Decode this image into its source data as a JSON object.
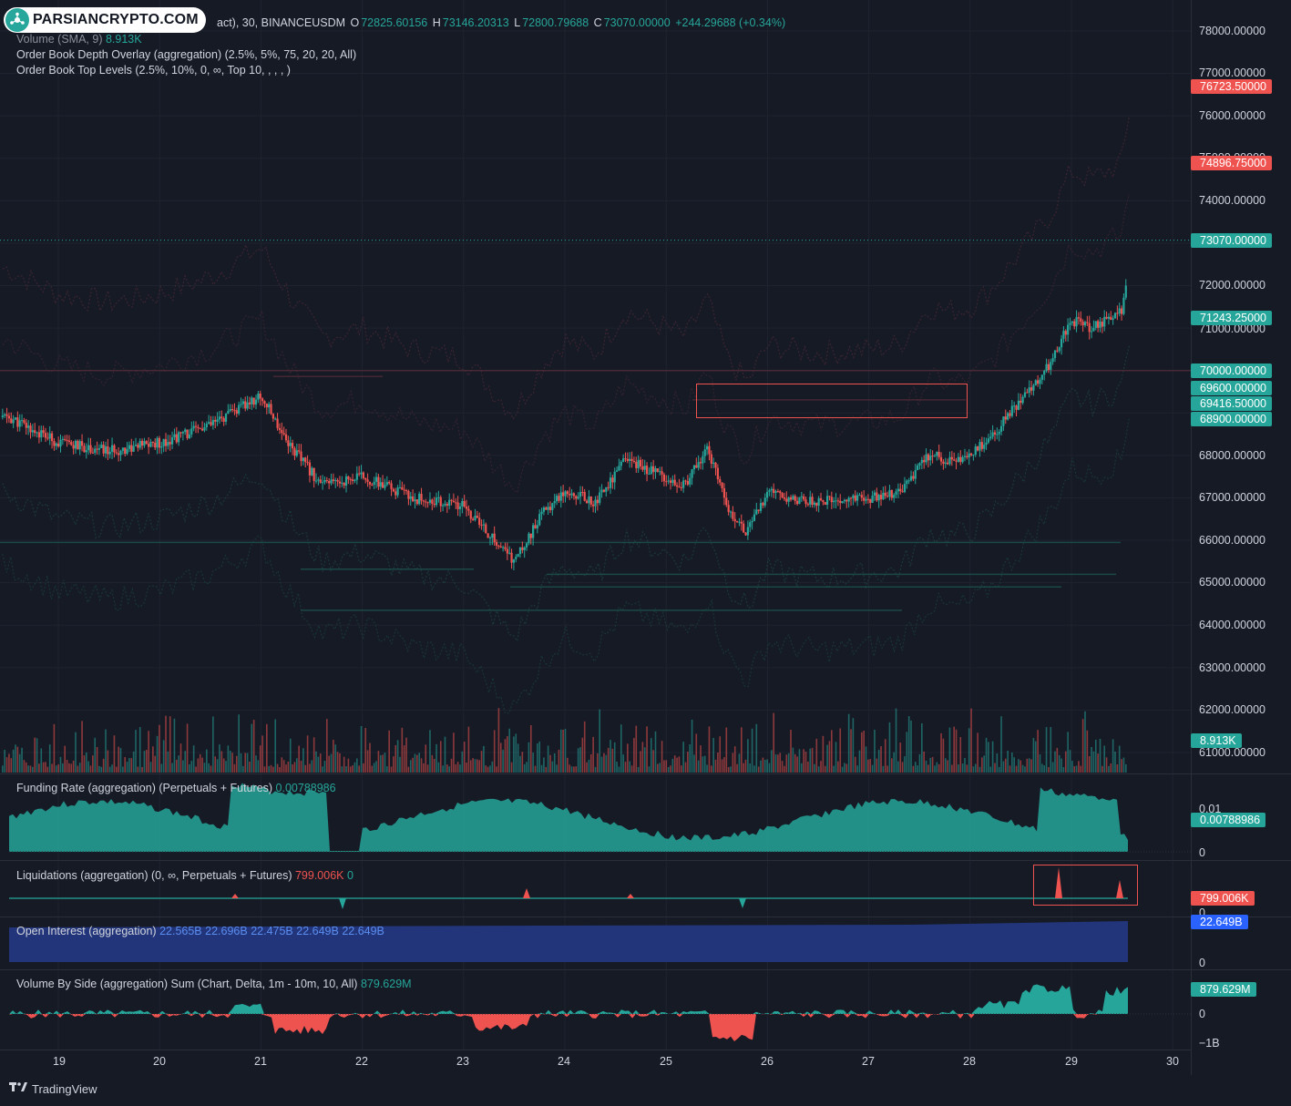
{
  "brand": {
    "name": "PARSIANCRYPTO.COM"
  },
  "main_legend": {
    "symbol_suffix": "act), 30, BINANCEUSDM",
    "open_label": "O",
    "open": "72825.60156",
    "high_label": "H",
    "high": "73146.20313",
    "low_label": "L",
    "low": "72800.79688",
    "close_label": "C",
    "close": "73070.00000",
    "change": "+244.29688 (+0.34%)",
    "volume_label": "Volume (SMA, 9)",
    "volume_value": "8.913K",
    "indicator_1": "Order Book Depth Overlay (aggregation) (2.5%, 5%, 75, 20, 20, All)",
    "indicator_2": "Order Book Top Levels (2.5%, 10%, 0, ∞, Top 10, , , , )"
  },
  "price_axis": {
    "ticks": [
      "78000.00000",
      "77000.00000",
      "76000.00000",
      "75000.00000",
      "74000.00000",
      "72000.00000",
      "71000.00000",
      "68000.00000",
      "67000.00000",
      "66000.00000",
      "65000.00000",
      "64000.00000",
      "63000.00000",
      "62000.00000",
      "61000.00000"
    ],
    "tags": [
      {
        "value": "76723.50000",
        "color": "red"
      },
      {
        "value": "74896.75000",
        "color": "red"
      },
      {
        "value": "73070.00000",
        "color": "green"
      },
      {
        "value": "71243.25000",
        "color": "green"
      },
      {
        "value": "70000.00000",
        "color": "green"
      },
      {
        "value": "69600.00000",
        "color": "green"
      },
      {
        "value": "69416.50000",
        "color": "green"
      },
      {
        "value": "68900.00000",
        "color": "green"
      },
      {
        "value": "8.913K",
        "color": "green"
      }
    ]
  },
  "funding_pane": {
    "label": "Funding Rate (aggregation) (Perpetuals + Futures)",
    "value": "0.00788986",
    "tag": "0.00788986",
    "axis_top": "0.01",
    "axis_zero": "0"
  },
  "liquidations_pane": {
    "label": "Liquidations (aggregation) (0, ∞, Perpetuals + Futures)",
    "value_red": "799.006K",
    "value_green": "0",
    "tag": "799.006K",
    "axis_zero": "0"
  },
  "oi_pane": {
    "label": "Open Interest (aggregation)",
    "v1": "22.565B",
    "v2": "22.696B",
    "v3": "22.475B",
    "v4": "22.649B",
    "v5": "22.649B",
    "tag": "22.649B",
    "axis_zero": "0"
  },
  "vbs_pane": {
    "label": "Volume By Side (aggregation) Sum (Chart, Delta, 1m - 10m, 10, All)",
    "value": "879.629M",
    "tag": "879.629M",
    "axis_zero": "0",
    "axis_bottom": "−1B"
  },
  "time_axis": {
    "dates": [
      "19",
      "20",
      "21",
      "22",
      "23",
      "24",
      "25",
      "26",
      "27",
      "28",
      "29",
      "30"
    ]
  },
  "footer": {
    "tradingview": "TradingView"
  },
  "colors": {
    "up": "#26a69a",
    "down": "#ef5350",
    "oi": "#2962ff",
    "bg": "#161a25"
  },
  "chart_data": {
    "type": "candlestick",
    "symbol": "BINANCEUSDM",
    "interval": "30",
    "x_dates": [
      "19",
      "20",
      "21",
      "22",
      "23",
      "24",
      "25",
      "26",
      "27",
      "28",
      "29",
      "30"
    ],
    "close_path_dates": [
      18.5,
      19,
      19.5,
      20,
      20.5,
      21,
      21.3,
      21.6,
      22,
      22.5,
      23,
      23.3,
      23.5,
      23.8,
      24,
      24.3,
      24.6,
      24.9,
      25.2,
      25.4,
      25.6,
      25.8,
      26,
      26.5,
      27,
      27.3,
      27.6,
      27.8,
      28,
      28.2,
      28.5,
      28.8,
      29,
      29.2,
      29.5,
      29.6
    ],
    "close_path_prices": [
      68900,
      68300,
      68100,
      68300,
      68700,
      69400,
      68200,
      67300,
      67500,
      67000,
      66800,
      66000,
      65500,
      66700,
      67200,
      66900,
      67900,
      67600,
      67300,
      68200,
      66800,
      66200,
      67100,
      66900,
      67000,
      67100,
      68000,
      67900,
      68000,
      68400,
      69300,
      70200,
      71200,
      71000,
      71400,
      73070
    ],
    "ylim": [
      60700,
      78400
    ],
    "last_price": 73070
  }
}
